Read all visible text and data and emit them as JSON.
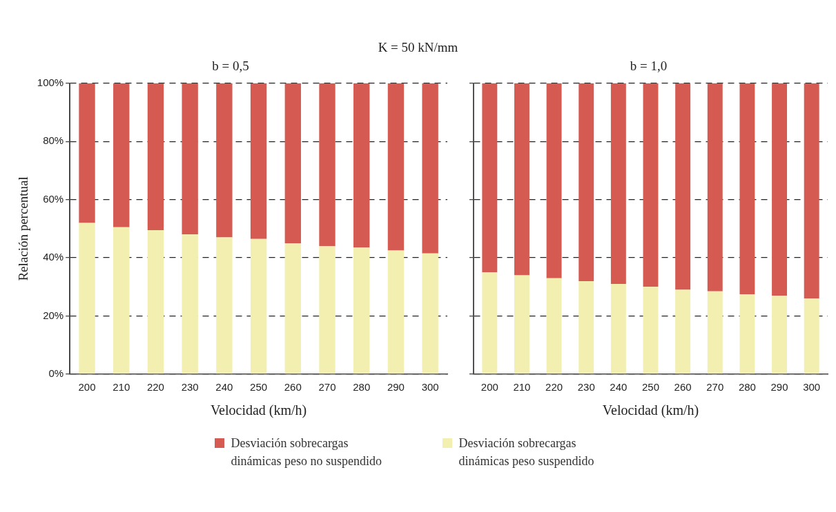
{
  "chart_data": [
    {
      "type": "bar",
      "title": "b = 0,5",
      "annotations": [
        "K = 50 kN/mm"
      ],
      "xlabel": "Velocidad (km/h)",
      "ylabel": "Relación percentual",
      "categories": [
        "200",
        "210",
        "220",
        "230",
        "240",
        "250",
        "260",
        "270",
        "280",
        "290",
        "300"
      ],
      "stacked": true,
      "series": [
        {
          "name": "Desviación sobrecargas dinámicas peso suspendido",
          "color": "#f2efb0",
          "values": [
            52,
            50.5,
            49.5,
            48,
            47,
            46.5,
            45,
            44,
            43.5,
            42.5,
            41.5
          ]
        },
        {
          "name": "Desviación sobrecargas dinámicas peso no suspendido",
          "color": "#d45a52",
          "values": [
            48,
            49.5,
            50.5,
            52,
            53,
            53.5,
            55,
            56,
            56.5,
            57.5,
            58.5
          ]
        }
      ],
      "ylim": [
        0,
        100
      ],
      "yticks": [
        {
          "value": 0,
          "label": "0%"
        },
        {
          "value": 20,
          "label": "20%"
        },
        {
          "value": 40,
          "label": "40%"
        },
        {
          "value": 60,
          "label": "60%"
        },
        {
          "value": 80,
          "label": "80%"
        },
        {
          "value": 100,
          "label": "100%"
        }
      ],
      "grid": "y",
      "legend": "bottom"
    },
    {
      "type": "bar",
      "title": "b = 1,0",
      "xlabel": "Velocidad (km/h)",
      "categories": [
        "200",
        "210",
        "220",
        "230",
        "240",
        "250",
        "260",
        "270",
        "280",
        "290",
        "300"
      ],
      "stacked": true,
      "series": [
        {
          "color": "#f2efb0",
          "values": [
            35,
            34,
            33,
            32,
            31,
            30,
            29,
            28.5,
            27.5,
            27,
            26
          ]
        },
        {
          "color": "#d45a52",
          "values": [
            65,
            66,
            67,
            68,
            69,
            70,
            71,
            71.5,
            72.5,
            73,
            74
          ]
        }
      ],
      "ylim": [
        0,
        100
      ],
      "yticks": [
        0,
        20,
        40,
        60,
        80,
        100
      ],
      "grid": "y",
      "tick_labels": "x"
    }
  ]
}
